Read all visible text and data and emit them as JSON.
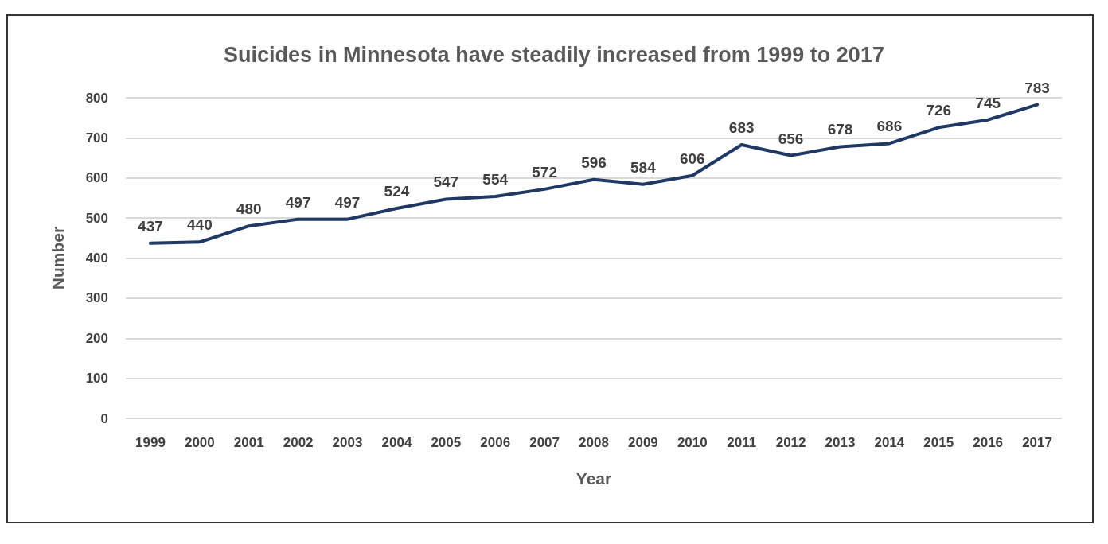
{
  "chart_data": {
    "type": "line",
    "title": "Suicides in Minnesota have steadily increased from 1999 to 2017",
    "xlabel": "Year",
    "ylabel": "Number",
    "categories": [
      "1999",
      "2000",
      "2001",
      "2002",
      "2003",
      "2004",
      "2005",
      "2006",
      "2007",
      "2008",
      "2009",
      "2010",
      "2011",
      "2012",
      "2013",
      "2014",
      "2015",
      "2016",
      "2017"
    ],
    "series": [
      {
        "color": "#1f3864",
        "values": [
          437,
          440,
          480,
          497,
          497,
          524,
          547,
          554,
          572,
          596,
          584,
          606,
          683,
          656,
          678,
          686,
          726,
          745,
          783
        ]
      }
    ],
    "ylim": [
      0,
      800
    ],
    "yticks": [
      0,
      100,
      200,
      300,
      400,
      500,
      600,
      700,
      800
    ],
    "grid": "y",
    "data_labels": true,
    "marker": "none",
    "line_style": "solid"
  }
}
